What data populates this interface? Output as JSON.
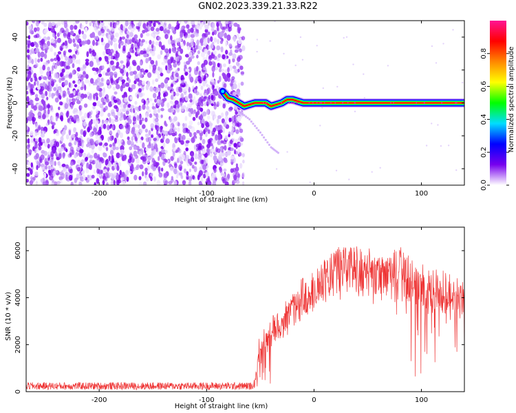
{
  "title": "GN02.2023.339.21.33.R22",
  "chart_data": [
    {
      "type": "heatmap",
      "xlabel": "Height of straight line (km)",
      "ylabel": "Frequency (Hz)",
      "xlim": [
        -268,
        140
      ],
      "ylim": [
        -50,
        50
      ],
      "xticks": [
        -200,
        -100,
        0,
        100
      ],
      "yticks": [
        -40,
        -20,
        0,
        20,
        40
      ],
      "colorbar": {
        "label": "Normalized spectral amplitude",
        "range": [
          0,
          1
        ],
        "ticks": [
          "0.0",
          "0.2",
          "0.4",
          "0.6",
          "0.8"
        ],
        "colors": [
          "#ffffff",
          "#7700ee",
          "#0000ff",
          "#00ddff",
          "#00ff00",
          "#ffff00",
          "#ff8800",
          "#ff0000",
          "#ff1493"
        ]
      },
      "noise_region_x": [
        -268,
        -72
      ],
      "signal_ridge": {
        "x": [
          -85,
          -80,
          -75,
          -70,
          -65,
          -60,
          -55,
          -50,
          -45,
          -40,
          -35,
          -30,
          -25,
          -20,
          -15,
          -10,
          0,
          20,
          40,
          60,
          80,
          100,
          120,
          140
        ],
        "y": [
          7,
          3,
          2,
          0,
          -2,
          -1,
          0,
          0,
          0,
          -2,
          -1,
          0,
          2,
          2,
          1,
          0,
          0,
          0,
          0,
          0,
          0,
          0,
          0,
          0
        ]
      },
      "faint_branch": {
        "x": [
          -70,
          -60,
          -50,
          -40,
          -32
        ],
        "y": [
          -5,
          -10,
          -18,
          -27,
          -31
        ]
      }
    },
    {
      "type": "line",
      "xlabel": "Height of straight line (km)",
      "ylabel": "SNR (10 * v/v)",
      "xlim": [
        -268,
        140
      ],
      "ylim": [
        0,
        7000
      ],
      "xticks": [
        -200,
        -100,
        0,
        100
      ],
      "yticks": [
        0,
        2000,
        4000,
        6000
      ],
      "color": "#ee3333",
      "series_envelope": {
        "x": [
          -268,
          -200,
          -100,
          -60,
          -55,
          -52,
          -45,
          -40,
          -30,
          -20,
          -10,
          0,
          10,
          20,
          30,
          40,
          50,
          60,
          70,
          80,
          90,
          100,
          110,
          120,
          130,
          140
        ],
        "y": [
          250,
          250,
          250,
          250,
          400,
          2100,
          2600,
          3000,
          3600,
          4200,
          4800,
          5200,
          5700,
          6200,
          6300,
          6200,
          6000,
          5900,
          5950,
          6100,
          5600,
          5300,
          5100,
          5000,
          4800,
          4700
        ]
      },
      "noise_amplitude": 150
    }
  ]
}
